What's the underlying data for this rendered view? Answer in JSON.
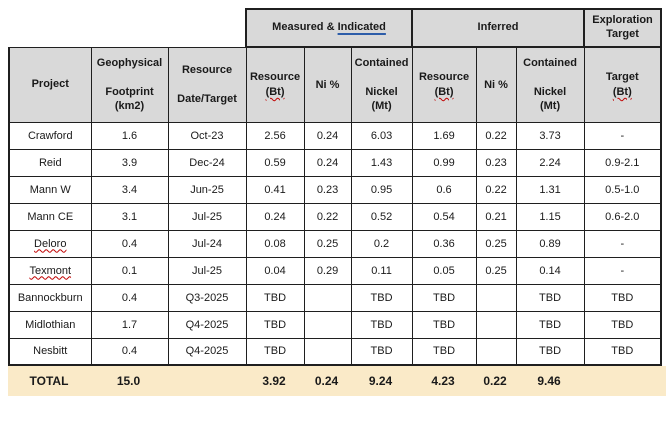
{
  "colors": {
    "header_bg": "#d9d9d9",
    "total_row_bg": "#faeac8",
    "border": "#1f1f1f",
    "spellcheck_squiggle": "#c00000",
    "indicated_underline": "#2d5da9"
  },
  "table": {
    "group_headers": {
      "measured_indicated_prefix": "Measured & ",
      "measured_indicated_underlined": "Indicated",
      "inferred": "Inferred",
      "exploration_target": "Exploration\nTarget"
    },
    "columns": [
      {
        "id": "project",
        "header_parts": [
          {
            "text": "Project"
          }
        ]
      },
      {
        "id": "geophysical-footprint",
        "header_parts": [
          {
            "text": "Geophysical\n\nFootprint\n(km2)"
          }
        ]
      },
      {
        "id": "resource-date-target",
        "header_parts": [
          {
            "text": "Resource\n\nDate/Target"
          }
        ]
      },
      {
        "id": "mi-resource-bt",
        "header_parts": [
          {
            "text": "Resource\n"
          },
          {
            "text": "(Bt)",
            "squiggle": true
          }
        ]
      },
      {
        "id": "mi-ni-pct",
        "header_parts": [
          {
            "text": "Ni %"
          }
        ]
      },
      {
        "id": "mi-contained-nickel",
        "header_parts": [
          {
            "text": "Contained\n\nNickel\n(Mt)"
          }
        ]
      },
      {
        "id": "inf-resource-bt",
        "header_parts": [
          {
            "text": "Resource\n"
          },
          {
            "text": "(Bt)",
            "squiggle": true
          }
        ]
      },
      {
        "id": "inf-ni-pct",
        "header_parts": [
          {
            "text": "Ni %"
          }
        ]
      },
      {
        "id": "inf-contained-nickel",
        "header_parts": [
          {
            "text": "Contained\n\nNickel\n(Mt)"
          }
        ]
      },
      {
        "id": "exploration-target-bt",
        "header_parts": [
          {
            "text": "Target\n"
          },
          {
            "text": "(Bt)",
            "squiggle": true
          }
        ]
      }
    ],
    "rows": [
      {
        "project": "Crawford",
        "misspelled": false,
        "cells": [
          "1.6",
          "Oct-23",
          "2.56",
          "0.24",
          "6.03",
          "1.69",
          "0.22",
          "3.73",
          "-"
        ]
      },
      {
        "project": "Reid",
        "misspelled": false,
        "cells": [
          "3.9",
          "Dec-24",
          "0.59",
          "0.24",
          "1.43",
          "0.99",
          "0.23",
          "2.24",
          "0.9-2.1"
        ]
      },
      {
        "project": "Mann W",
        "misspelled": false,
        "cells": [
          "3.4",
          "Jun-25",
          "0.41",
          "0.23",
          "0.95",
          "0.6",
          "0.22",
          "1.31",
          "0.5-1.0"
        ]
      },
      {
        "project": "Mann CE",
        "misspelled": false,
        "cells": [
          "3.1",
          "Jul-25",
          "0.24",
          "0.22",
          "0.52",
          "0.54",
          "0.21",
          "1.15",
          "0.6-2.0"
        ]
      },
      {
        "project": "Deloro",
        "misspelled": true,
        "cells": [
          "0.4",
          "Jul-24",
          "0.08",
          "0.25",
          "0.2",
          "0.36",
          "0.25",
          "0.89",
          "-"
        ]
      },
      {
        "project": "Texmont",
        "misspelled": true,
        "cells": [
          "0.1",
          "Jul-25",
          "0.04",
          "0.29",
          "0.11",
          "0.05",
          "0.25",
          "0.14",
          "-"
        ]
      },
      {
        "project": "Bannockburn",
        "misspelled": false,
        "cells": [
          "0.4",
          "Q3-2025",
          "TBD",
          "",
          "TBD",
          "TBD",
          "",
          "TBD",
          "TBD"
        ]
      },
      {
        "project": "Midlothian",
        "misspelled": false,
        "cells": [
          "1.7",
          "Q4-2025",
          "TBD",
          "",
          "TBD",
          "TBD",
          "",
          "TBD",
          "TBD"
        ]
      },
      {
        "project": "Nesbitt",
        "misspelled": false,
        "cells": [
          "0.4",
          "Q4-2025",
          "TBD",
          "",
          "TBD",
          "TBD",
          "",
          "TBD",
          "TBD"
        ]
      }
    ],
    "total_row": {
      "label": "TOTAL",
      "cells": [
        "15.0",
        "",
        "3.92",
        "0.24",
        "9.24",
        "4.23",
        "0.22",
        "9.46",
        ""
      ]
    }
  }
}
